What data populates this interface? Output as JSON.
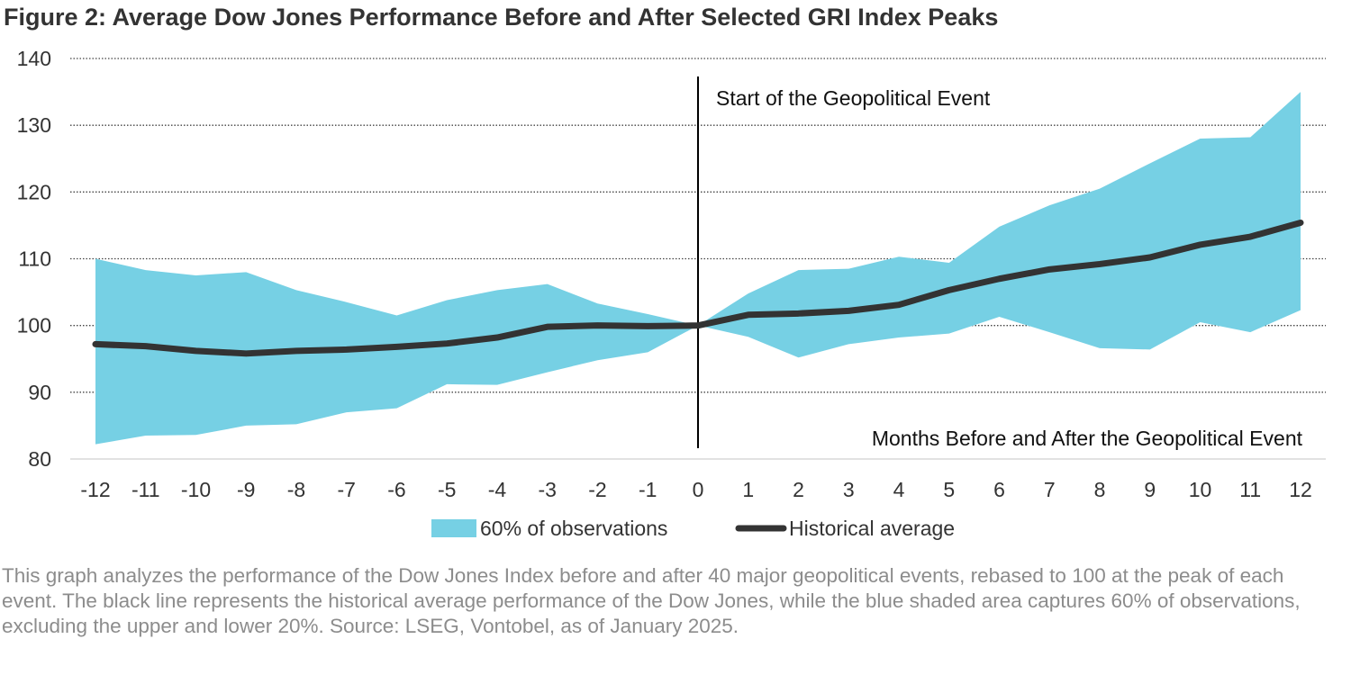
{
  "title": "Figure 2: Average Dow Jones Performance Before and After Selected GRI Index Peaks",
  "caption": "This graph analyzes the performance of the Dow Jones Index before and after 40 major geopolitical events, rebased to 100 at the peak of each event. The black line represents the historical average performance of the Dow Jones, while the blue shaded area captures 60% of observations, excluding the upper and lower 20%. Source: LSEG, Vontobel, as of January 2025.",
  "chart_data": {
    "type": "area",
    "xlabel": "Months Before and After the Geopolitical Event",
    "ylabel": "",
    "x": [
      -12,
      -11,
      -10,
      -9,
      -8,
      -7,
      -6,
      -5,
      -4,
      -3,
      -2,
      -1,
      0,
      1,
      2,
      3,
      4,
      5,
      6,
      7,
      8,
      9,
      10,
      11,
      12
    ],
    "xticks": [
      "-12",
      "-11",
      "-10",
      "-9",
      "-8",
      "-7",
      "-6",
      "-5",
      "-4",
      "-3",
      "-2",
      "-1",
      "0",
      "1",
      "2",
      "3",
      "4",
      "5",
      "6",
      "7",
      "8",
      "9",
      "10",
      "11",
      "12"
    ],
    "ylim": [
      80,
      140
    ],
    "yticks": [
      80,
      90,
      100,
      110,
      120,
      130,
      140
    ],
    "grid": "horizontal dotted",
    "legend_position": "bottom",
    "annotation": "Start of the Geopolitical Event",
    "event_x": 0,
    "series": [
      {
        "name": "60% of observations",
        "type": "band",
        "color": "#76d0e4",
        "upper": [
          110,
          108.3,
          107.5,
          108,
          105.3,
          103.5,
          101.5,
          103.8,
          105.3,
          106.2,
          103.3,
          101.7,
          100,
          104.8,
          108.3,
          108.5,
          110.3,
          109.4,
          114.8,
          118,
          120.5,
          124.3,
          128,
          128.2,
          135
        ],
        "lower": [
          82.2,
          83.5,
          83.6,
          85,
          85.2,
          87,
          87.6,
          91.2,
          91.1,
          93,
          94.8,
          96,
          100,
          98.3,
          95.2,
          97.2,
          98.2,
          98.8,
          101.3,
          99,
          96.6,
          96.4,
          100.5,
          99,
          102.3
        ]
      },
      {
        "name": "Historical average",
        "type": "line",
        "color": "#333333",
        "values": [
          97.2,
          96.9,
          96.2,
          95.8,
          96.2,
          96.4,
          96.8,
          97.3,
          98.2,
          99.8,
          100,
          99.9,
          100,
          101.6,
          101.8,
          102.2,
          103.1,
          105.3,
          107,
          108.4,
          109.2,
          110.2,
          112.1,
          113.3,
          115.4
        ]
      }
    ]
  }
}
